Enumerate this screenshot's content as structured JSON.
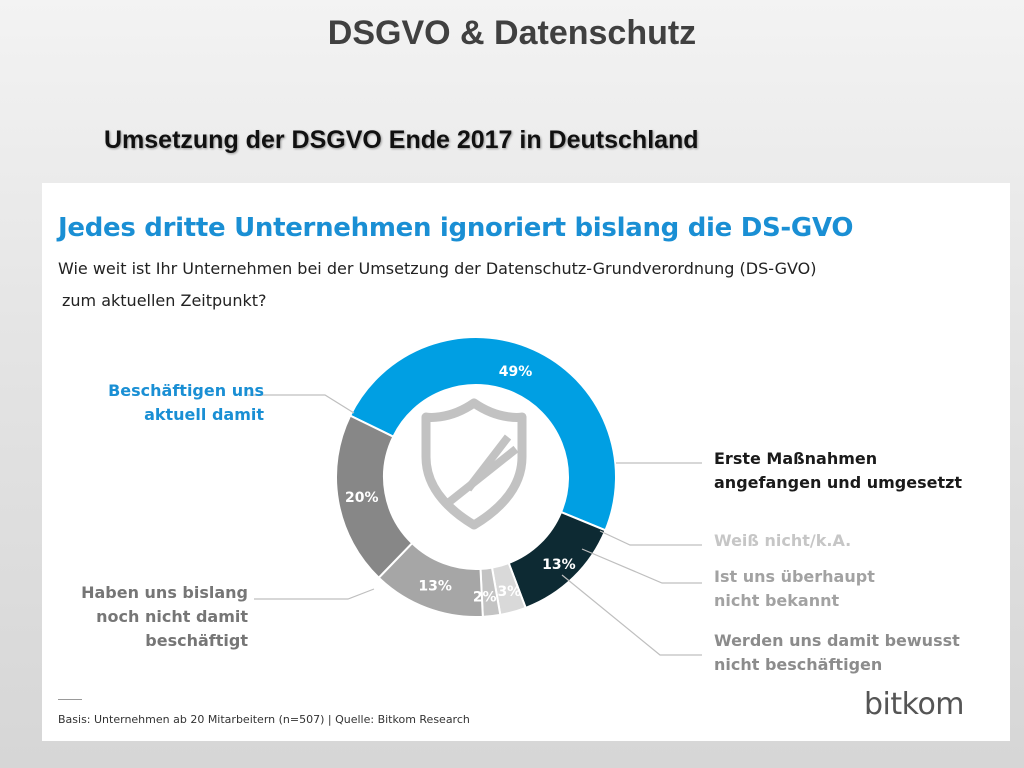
{
  "slide": {
    "title": "DSGVO & Datenschutz",
    "subtitle": "Umsetzung der DSGVO Ende 2017 in Deutschland"
  },
  "card": {
    "headline": "Jedes dritte Unternehmen ignoriert bislang die DS-GVO",
    "question_line1": "Wie weit ist Ihr Unternehmen bei der Umsetzung der Datenschutz-Grundverordnung (DS-GVO)",
    "question_line2": "zum aktuellen Zeitpunkt?",
    "footer": "Basis: Unternehmen ab 20 Mitarbeitern  (n=507) | Quelle: Bitkom Research",
    "logo_part1": "bit",
    "logo_part2": "kom"
  },
  "chart_data": {
    "type": "pie",
    "variant": "donut",
    "center_icon": "shield-icon",
    "slices": [
      {
        "label": "Beschäftigen uns\naktuell damit",
        "value": 49,
        "value_label": "49%",
        "color": "#009fe3",
        "label_color": "#1a8fd4"
      },
      {
        "label": "Erste Maßnahmen\nangefangen und umgesetzt",
        "value": 13,
        "value_label": "13%",
        "color": "#0d2a33",
        "label_color": "#1a1a1a"
      },
      {
        "label": "Weiß nicht/k.A.",
        "value": 3,
        "value_label": "3%",
        "color": "#d9d9d9",
        "label_color": "#c6c6c6"
      },
      {
        "label": "Ist uns überhaupt\nnicht bekannt",
        "value": 2,
        "value_label": "2%",
        "color": "#c3c3c3",
        "label_color": "#a2a2a2"
      },
      {
        "label": "Werden uns damit bewusst\nnicht beschäftigen",
        "value": 13,
        "value_label": "13%",
        "color": "#a6a6a6",
        "label_color": "#8c8c8c"
      },
      {
        "label": "Haben uns bislang\nnoch nicht damit\nbeschäftigt",
        "value": 20,
        "value_label": "20%",
        "color": "#878787",
        "label_color": "#767676"
      }
    ]
  }
}
